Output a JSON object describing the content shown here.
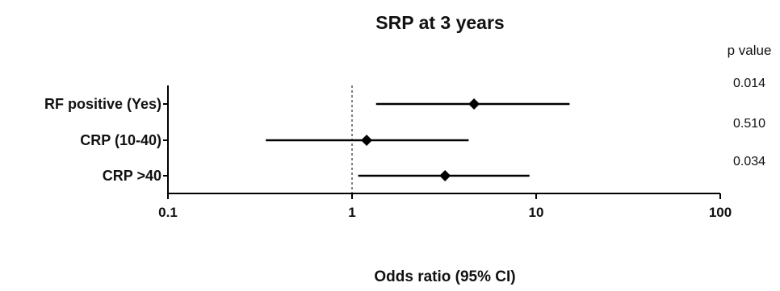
{
  "chart_data": {
    "type": "forest",
    "title": "SRP at 3 years",
    "xlabel": "Odds ratio (95% CI)",
    "ylabel": "",
    "x_scale": "log",
    "xlim": [
      0.1,
      100
    ],
    "x_ticks": [
      0.1,
      1,
      10,
      100
    ],
    "x_tick_labels": [
      "0.1",
      "1",
      "10",
      "100"
    ],
    "reference_line": 1,
    "categories": [
      "RF positive (Yes)",
      "CRP (10-40)",
      "CRP >40"
    ],
    "estimates": [
      4.6,
      1.2,
      3.2
    ],
    "ci_lower": [
      1.35,
      0.34,
      1.08
    ],
    "ci_upper": [
      15.2,
      4.3,
      9.2
    ],
    "p_value_header": "p value",
    "p_values": [
      "0.014",
      "0.510",
      "0.034"
    ],
    "grid": false,
    "colors": {
      "marker": "#000000",
      "line": "#000000",
      "axis": "#000000",
      "reference": "#000000"
    }
  }
}
